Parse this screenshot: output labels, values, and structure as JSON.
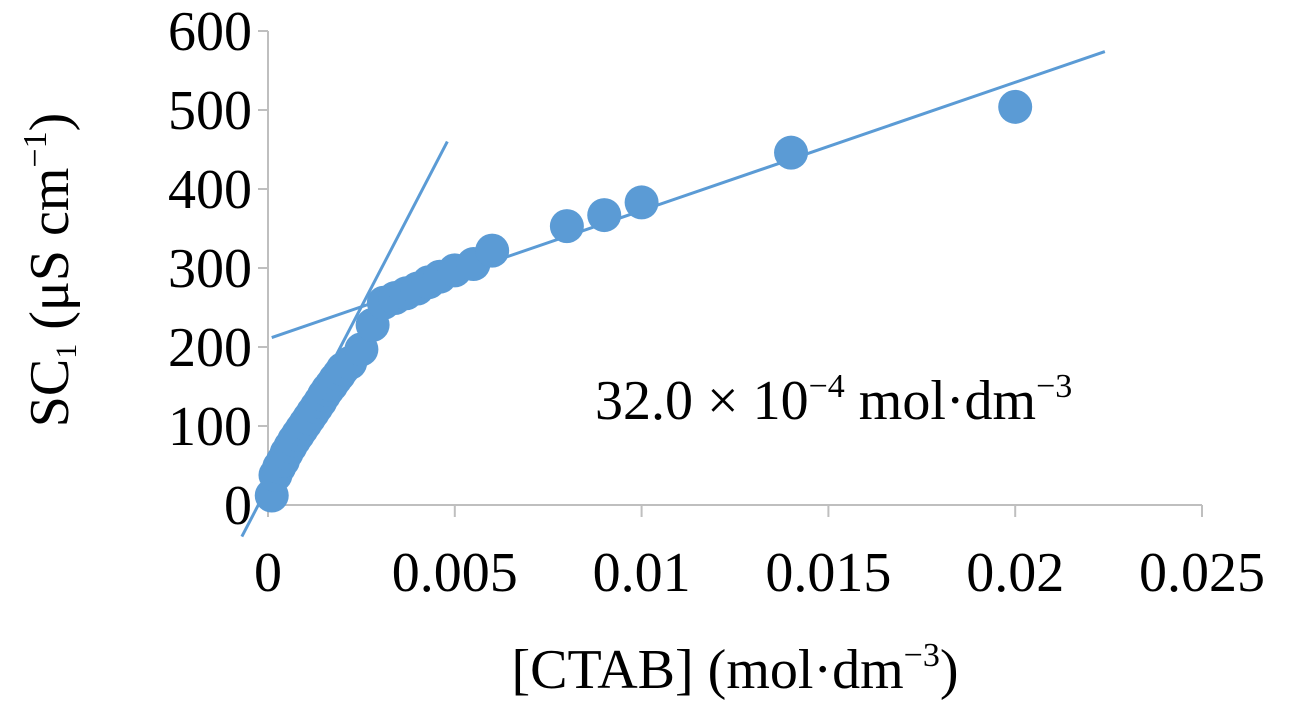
{
  "chart_data": {
    "type": "scatter",
    "xlabel": {
      "main": "[CTAB] (mol·dm",
      "exp": "−3",
      "close": ")"
    },
    "ylabel": {
      "base": "SC",
      "sub": "1",
      "unit": " (μS cm",
      "exp": "−1",
      "close": ")"
    },
    "annotation": {
      "main": "32.0 × 10",
      "exp": "−4",
      "unit": " mol·dm",
      "exp2": "−3"
    },
    "xlim": [
      0,
      0.025
    ],
    "ylim": [
      0,
      600
    ],
    "x_ticks": [
      0,
      0.005,
      0.01,
      0.015,
      0.02,
      0.025
    ],
    "x_tick_labels": [
      "0",
      "0.005",
      "0.01",
      "0.015",
      "0.02",
      "0.025"
    ],
    "y_ticks": [
      0,
      100,
      200,
      300,
      400,
      500,
      600
    ],
    "y_tick_labels": [
      "0",
      "100",
      "200",
      "300",
      "400",
      "500",
      "600"
    ],
    "grid": false,
    "legend": "none",
    "colors": {
      "marker": "#5B9BD5",
      "line": "#5B9BD5",
      "axis": "#BFBFBF"
    },
    "points": [
      [
        0.0001,
        12
      ],
      [
        0.0002,
        38
      ],
      [
        0.0003,
        48
      ],
      [
        0.0004,
        56
      ],
      [
        0.0005,
        66
      ],
      [
        0.0006,
        74
      ],
      [
        0.0007,
        82
      ],
      [
        0.0008,
        89
      ],
      [
        0.0009,
        96
      ],
      [
        0.001,
        103
      ],
      [
        0.0011,
        110
      ],
      [
        0.0012,
        117
      ],
      [
        0.0013,
        124
      ],
      [
        0.0014,
        131
      ],
      [
        0.0015,
        139
      ],
      [
        0.0016,
        146
      ],
      [
        0.0017,
        152
      ],
      [
        0.0018,
        159
      ],
      [
        0.0019,
        165
      ],
      [
        0.002,
        172
      ],
      [
        0.0022,
        180
      ],
      [
        0.0025,
        197
      ],
      [
        0.0028,
        228
      ],
      [
        0.0031,
        256
      ],
      [
        0.0034,
        262
      ],
      [
        0.0037,
        268
      ],
      [
        0.004,
        274
      ],
      [
        0.0043,
        282
      ],
      [
        0.0046,
        289
      ],
      [
        0.005,
        297
      ],
      [
        0.0055,
        305
      ],
      [
        0.006,
        322
      ],
      [
        0.008,
        353
      ],
      [
        0.009,
        367
      ],
      [
        0.01,
        383
      ],
      [
        0.014,
        446
      ],
      [
        0.02,
        504
      ]
    ],
    "fit_lines": [
      {
        "x": [
          -0.0007,
          0.0048
        ],
        "y": [
          -40,
          460
        ]
      },
      {
        "x": [
          0.0001,
          0.0224
        ],
        "y": [
          212,
          574
        ]
      }
    ]
  }
}
